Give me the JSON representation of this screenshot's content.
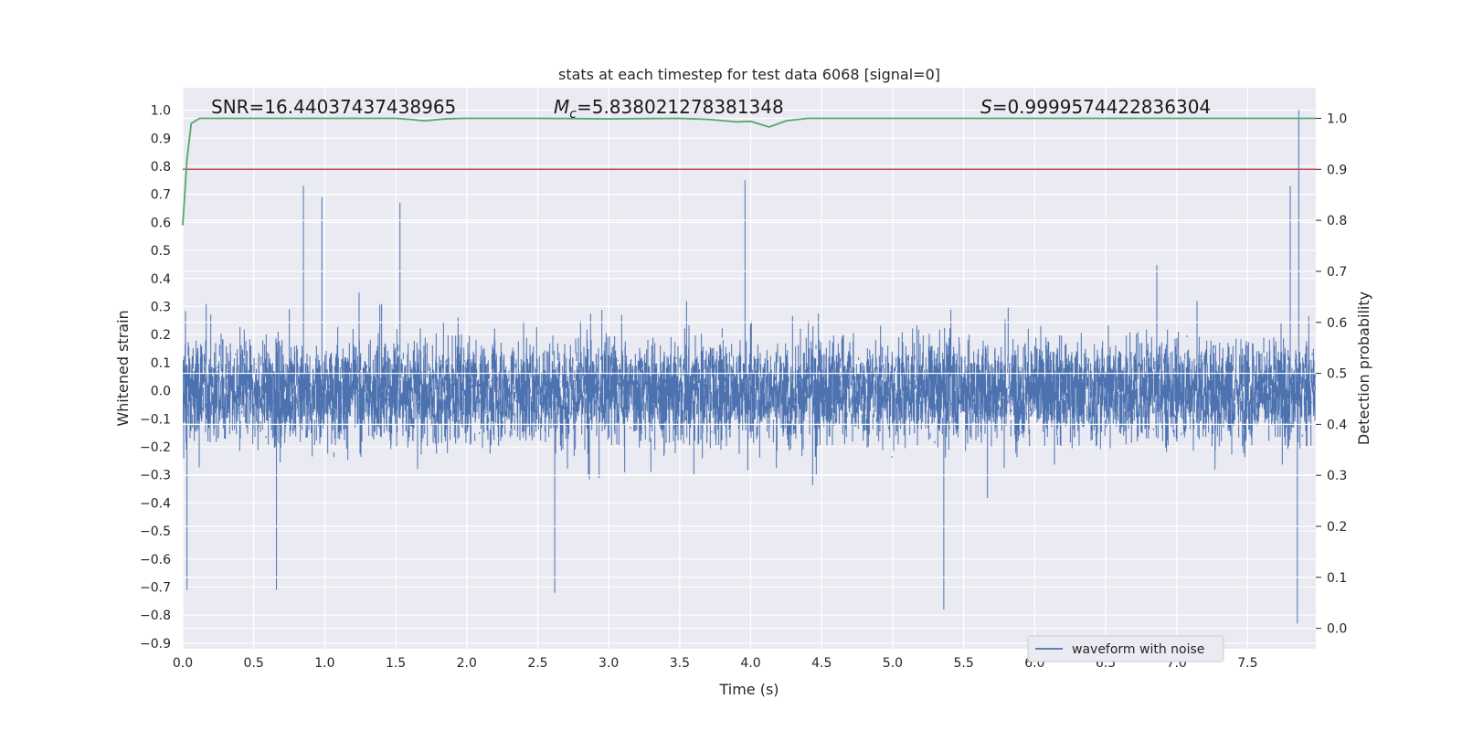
{
  "chart_data": {
    "type": "line",
    "title": "stats at each timestep for test data 6068 [signal=0]",
    "xlabel": "Time (s)",
    "ylabel": "Whitened strain",
    "y2label": "Detection probability",
    "xlim": [
      0.0,
      7.98
    ],
    "ylim": [
      -0.92,
      1.08
    ],
    "y2lim": [
      -0.04,
      1.06
    ],
    "grid": true,
    "legend_location": "lower right",
    "x_ticks": [
      "0.0",
      "0.5",
      "1.0",
      "1.5",
      "2.0",
      "2.5",
      "3.0",
      "3.5",
      "4.0",
      "4.5",
      "5.0",
      "5.5",
      "6.0",
      "6.5",
      "7.0",
      "7.5"
    ],
    "y_ticks": [
      "1.0",
      "0.9",
      "0.8",
      "0.7",
      "0.6",
      "0.5",
      "0.4",
      "0.3",
      "0.2",
      "0.1",
      "0.0",
      "−0.1",
      "−0.2",
      "−0.3",
      "−0.4",
      "−0.5",
      "−0.6",
      "−0.7",
      "−0.8",
      "−0.9"
    ],
    "y2_ticks": [
      "1.0",
      "0.9",
      "0.8",
      "0.7",
      "0.6",
      "0.5",
      "0.4",
      "0.3",
      "0.2",
      "0.1",
      "0.0"
    ],
    "annotations": {
      "snr": "SNR=16.44037437438965",
      "mc_sym": "M",
      "mc_sub": "c",
      "mc_val": "=5.838021278381348",
      "s_sym": "S",
      "s_val": "=0.9999574422836304"
    },
    "series": [
      {
        "name": "waveform with noise",
        "axis": "left",
        "color": "#4c72b0",
        "sample_rate_hz": 2048,
        "envelope": {
          "typical_abs": 0.32,
          "spike_max": 1.0,
          "spike_min": -0.83
        },
        "extreme_points": [
          {
            "x": 0.85,
            "y": 0.73
          },
          {
            "x": 0.98,
            "y": 0.69
          },
          {
            "x": 1.53,
            "y": 0.67
          },
          {
            "x": 3.96,
            "y": 0.75
          },
          {
            "x": 7.8,
            "y": 0.73
          },
          {
            "x": 7.86,
            "y": 1.0
          },
          {
            "x": 0.03,
            "y": -0.71
          },
          {
            "x": 0.66,
            "y": -0.71
          },
          {
            "x": 2.62,
            "y": -0.72
          },
          {
            "x": 5.36,
            "y": -0.78
          },
          {
            "x": 7.85,
            "y": -0.83
          }
        ]
      },
      {
        "axis": "right",
        "color": "#55a868",
        "x": [
          0.0,
          0.03,
          0.06,
          0.12,
          0.5,
          1.0,
          1.5,
          1.6,
          1.7,
          1.85,
          2.0,
          2.5,
          3.0,
          3.5,
          3.7,
          3.9,
          4.0,
          4.13,
          4.25,
          4.4,
          5.0,
          6.0,
          7.0,
          7.98
        ],
        "y": [
          0.79,
          0.92,
          0.99,
          1.0,
          1.0,
          1.0,
          1.0,
          0.998,
          0.995,
          0.999,
          1.0,
          1.0,
          0.999,
          1.0,
          0.998,
          0.993,
          0.994,
          0.983,
          0.995,
          1.0,
          1.0,
          1.0,
          1.0,
          1.0
        ]
      },
      {
        "axis": "right",
        "color": "#c44e52",
        "x": [
          0.0,
          7.98
        ],
        "y": [
          0.9,
          0.9
        ]
      }
    ]
  }
}
